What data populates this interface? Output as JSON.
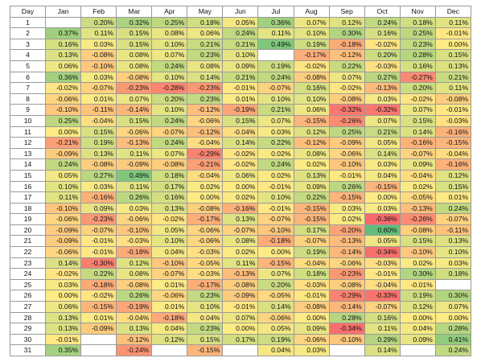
{
  "table": {
    "header": [
      "Day",
      "Jan",
      "Feb",
      "Mar",
      "Apr",
      "May",
      "Jun",
      "Jul",
      "Aug",
      "Sep",
      "Oct",
      "Nov",
      "Dec"
    ],
    "rows": [
      [
        "1",
        "",
        "0.20%",
        "0.32%",
        "0.25%",
        "0.18%",
        "0.05%",
        "0.36%",
        "0.07%",
        "0.12%",
        "0.24%",
        "0.18%",
        "0.11%"
      ],
      [
        "2",
        "0.37%",
        "0.11%",
        "0.15%",
        "0.08%",
        "0.06%",
        "0.24%",
        "0.11%",
        "0.10%",
        "0.30%",
        "0.16%",
        "0.25%",
        "-0.01%"
      ],
      [
        "3",
        "0.16%",
        "0.03%",
        "0.15%",
        "0.10%",
        "0.21%",
        "0.21%",
        "0.49%",
        "0.19%",
        "-0.18%",
        "-0.02%",
        "0.23%",
        "0.00%"
      ],
      [
        "4",
        "0.13%",
        "-0.08%",
        "0.08%",
        "0.07%",
        "0.23%",
        "0.10%",
        "",
        "-0.17%",
        "-0.12%",
        "0.20%",
        "0.28%",
        "0.15%"
      ],
      [
        "5",
        "0.06%",
        "-0.10%",
        "0.08%",
        "0.24%",
        "0.08%",
        "0.09%",
        "0.19%",
        "-0.02%",
        "0.22%",
        "-0.03%",
        "0.16%",
        "0.13%"
      ],
      [
        "6",
        "0.36%",
        "0.03%",
        "-0.08%",
        "0.10%",
        "0.14%",
        "0.21%",
        "0.24%",
        "-0.08%",
        "0.07%",
        "0.27%",
        "-0.27%",
        "0.21%"
      ],
      [
        "7",
        "-0.02%",
        "-0.07%",
        "-0.23%",
        "-0.28%",
        "-0.23%",
        "-0.01%",
        "-0.07%",
        "0.16%",
        "-0.02%",
        "-0.13%",
        "0.20%",
        "0.11%"
      ],
      [
        "8",
        "-0.06%",
        "0.01%",
        "0.07%",
        "0.20%",
        "0.23%",
        "0.01%",
        "0.10%",
        "0.10%",
        "-0.08%",
        "0.03%",
        "-0.02%",
        "-0.08%"
      ],
      [
        "9",
        "-0.10%",
        "-0.11%",
        "-0.14%",
        "0.10%",
        "-0.12%",
        "-0.19%",
        "0.21%",
        "0.06%",
        "-0.32%",
        "-0.32%",
        "0.07%",
        "-0.01%"
      ],
      [
        "10",
        "0.25%",
        "-0.04%",
        "0.15%",
        "0.24%",
        "-0.06%",
        "0.15%",
        "0.07%",
        "-0.15%",
        "-0.26%",
        "0.07%",
        "0.15%",
        "-0.03%"
      ],
      [
        "11",
        "0.00%",
        "0.15%",
        "-0.06%",
        "-0.07%",
        "-0.12%",
        "-0.04%",
        "0.03%",
        "0.12%",
        "0.25%",
        "0.21%",
        "0.14%",
        "-0.16%"
      ],
      [
        "12",
        "-0.21%",
        "0.19%",
        "-0.13%",
        "0.24%",
        "-0.04%",
        "0.14%",
        "0.22%",
        "-0.12%",
        "-0.09%",
        "0.05%",
        "-0.16%",
        "-0.15%"
      ],
      [
        "13",
        "-0.09%",
        "0.13%",
        "0.11%",
        "0.07%",
        "-0.29%",
        "-0.02%",
        "0.02%",
        "0.08%",
        "-0.06%",
        "0.14%",
        "-0.07%",
        "-0.04%"
      ],
      [
        "14",
        "0.24%",
        "-0.08%",
        "-0.09%",
        "-0.08%",
        "-0.21%",
        "-0.02%",
        "0.24%",
        "0.02%",
        "-0.10%",
        "0.03%",
        "0.09%",
        "-0.16%"
      ],
      [
        "15",
        "0.05%",
        "0.27%",
        "0.49%",
        "0.18%",
        "-0.04%",
        "0.06%",
        "0.02%",
        "0.13%",
        "-0.01%",
        "0.04%",
        "-0.04%",
        "0.12%"
      ],
      [
        "16",
        "0.10%",
        "0.03%",
        "0.11%",
        "0.17%",
        "0.02%",
        "0.00%",
        "-0.01%",
        "0.09%",
        "0.26%",
        "-0.15%",
        "0.02%",
        "0.15%"
      ],
      [
        "17",
        "0.11%",
        "-0.16%",
        "0.26%",
        "0.16%",
        "0.00%",
        "0.02%",
        "0.10%",
        "0.22%",
        "-0.15%",
        "0.00%",
        "-0.05%",
        "0.01%"
      ],
      [
        "18",
        "-0.10%",
        "0.09%",
        "0.03%",
        "0.13%",
        "-0.08%",
        "-0.16%",
        "-0.01%",
        "-0.15%",
        "0.03%",
        "0.03%",
        "-0.13%",
        "0.24%"
      ],
      [
        "19",
        "-0.06%",
        "-0.23%",
        "-0.06%",
        "-0.02%",
        "-0.17%",
        "0.13%",
        "-0.07%",
        "-0.15%",
        "0.02%",
        "-0.36%",
        "-0.26%",
        "-0.07%"
      ],
      [
        "20",
        "-0.09%",
        "-0.07%",
        "-0.10%",
        "0.05%",
        "-0.06%",
        "-0.07%",
        "-0.10%",
        "0.17%",
        "-0.20%",
        "0.60%",
        "-0.08%",
        "-0.11%"
      ],
      [
        "21",
        "-0.09%",
        "-0.01%",
        "-0.03%",
        "0.10%",
        "-0.06%",
        "0.08%",
        "-0.18%",
        "-0.07%",
        "-0.13%",
        "0.05%",
        "0.15%",
        "0.13%"
      ],
      [
        "22",
        "-0.06%",
        "-0.01%",
        "-0.18%",
        "0.04%",
        "-0.03%",
        "0.02%",
        "0.00%",
        "0.19%",
        "-0.14%",
        "-0.34%",
        "-0.10%",
        "0.10%"
      ],
      [
        "23",
        "0.14%",
        "-0.30%",
        "0.12%",
        "-0.10%",
        "-0.05%",
        "0.11%",
        "-0.15%",
        "-0.04%",
        "-0.06%",
        "-0.03%",
        "0.02%",
        "0.03%"
      ],
      [
        "24",
        "-0.02%",
        "0.22%",
        "0.08%",
        "-0.07%",
        "-0.03%",
        "-0.13%",
        "0.07%",
        "0.18%",
        "-0.23%",
        "-0.01%",
        "0.30%",
        "0.18%"
      ],
      [
        "25",
        "0.03%",
        "-0.18%",
        "-0.08%",
        "0.01%",
        "-0.17%",
        "-0.08%",
        "0.20%",
        "-0.03%",
        "-0.08%",
        "-0.04%",
        "-0.01%",
        ""
      ],
      [
        "26",
        "0.00%",
        "-0.02%",
        "0.26%",
        "-0.06%",
        "0.23%",
        "-0.09%",
        "-0.05%",
        "-0.01%",
        "-0.29%",
        "-0.33%",
        "0.19%",
        "0.30%"
      ],
      [
        "27",
        "0.06%",
        "-0.15%",
        "-0.19%",
        "0.01%",
        "0.10%",
        "-0.01%",
        "0.14%",
        "-0.08%",
        "-0.14%",
        "-0.07%",
        "0.12%",
        "0.07%"
      ],
      [
        "28",
        "0.13%",
        "0.01%",
        "-0.04%",
        "-0.18%",
        "0.04%",
        "0.07%",
        "-0.06%",
        "0.00%",
        "0.28%",
        "0.16%",
        "0.00%",
        "0.00%"
      ],
      [
        "29",
        "0.13%",
        "-0.09%",
        "0.13%",
        "0.04%",
        "0.23%",
        "0.00%",
        "0.05%",
        "0.09%",
        "-0.34%",
        "0.11%",
        "0.04%",
        "0.28%"
      ],
      [
        "30",
        "-0.01%",
        "",
        "-0.12%",
        "0.12%",
        "0.15%",
        "0.17%",
        "0.19%",
        "-0.06%",
        "-0.10%",
        "0.29%",
        "0.09%",
        "0.41%"
      ],
      [
        "31",
        "0.35%",
        "",
        "-0.24%",
        "",
        "-0.15%",
        "",
        "0.04%",
        "0.03%",
        "",
        "0.14%",
        "",
        "0.24%"
      ]
    ]
  },
  "colors": {
    "negative_max": "#f8696b",
    "midpoint": "#ffeb84",
    "positive_max": "#63be7b",
    "empty": "#ffffff",
    "grid_line": "#9a9a9a"
  },
  "color_scale": {
    "min": -0.36,
    "mid": 0.0,
    "max": 0.6
  }
}
